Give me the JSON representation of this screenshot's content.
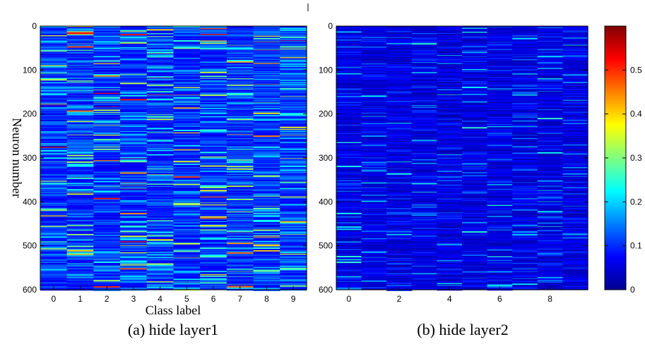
{
  "figure": {
    "left_caption": "(a) hide layer1",
    "right_caption": "(b) hide layer2",
    "ylabel": "Neuron number",
    "xlabel": "Class label"
  },
  "colorbar": {
    "ticks": [
      0,
      0.1,
      0.2,
      0.3,
      0.4,
      0.5
    ],
    "range": [
      0,
      0.6
    ],
    "colormap": "jet",
    "colors": [
      "#00008f",
      "#0000ff",
      "#00ffff",
      "#ffff00",
      "#ff0000",
      "#800000"
    ]
  },
  "chart_data": [
    {
      "type": "heatmap",
      "title": "(a) hide layer1",
      "xlabel": "Class label",
      "ylabel": "Neuron number",
      "x_categories": [
        "0",
        "1",
        "2",
        "3",
        "4",
        "5",
        "6",
        "7",
        "8",
        "9"
      ],
      "xticks": [
        0,
        1,
        2,
        3,
        4,
        5,
        6,
        7,
        8,
        9
      ],
      "yticks": [
        0,
        100,
        200,
        300,
        400,
        500,
        600
      ],
      "ylim": [
        0,
        600
      ],
      "value_range": [
        0,
        0.6
      ],
      "notes": "600 neurons x 10 class labels; mostly low activation (dark/medium blue) with scattered cyan/yellow/red high values up to ~0.55"
    },
    {
      "type": "heatmap",
      "title": "(b) hide layer2",
      "xlabel": "",
      "ylabel": "",
      "x_categories": [
        "0",
        "1",
        "2",
        "3",
        "4",
        "5",
        "6",
        "7",
        "8",
        "9"
      ],
      "xticks": [
        0,
        2,
        4,
        6,
        8
      ],
      "yticks": [
        0,
        100,
        200,
        300,
        400,
        500,
        600
      ],
      "ylim": [
        0,
        600
      ],
      "value_range": [
        0,
        0.6
      ],
      "notes": "600 neurons x 10 class labels; predominantly dark blue (~0.05), sparse light blue/cyan lines up to ~0.25"
    }
  ]
}
